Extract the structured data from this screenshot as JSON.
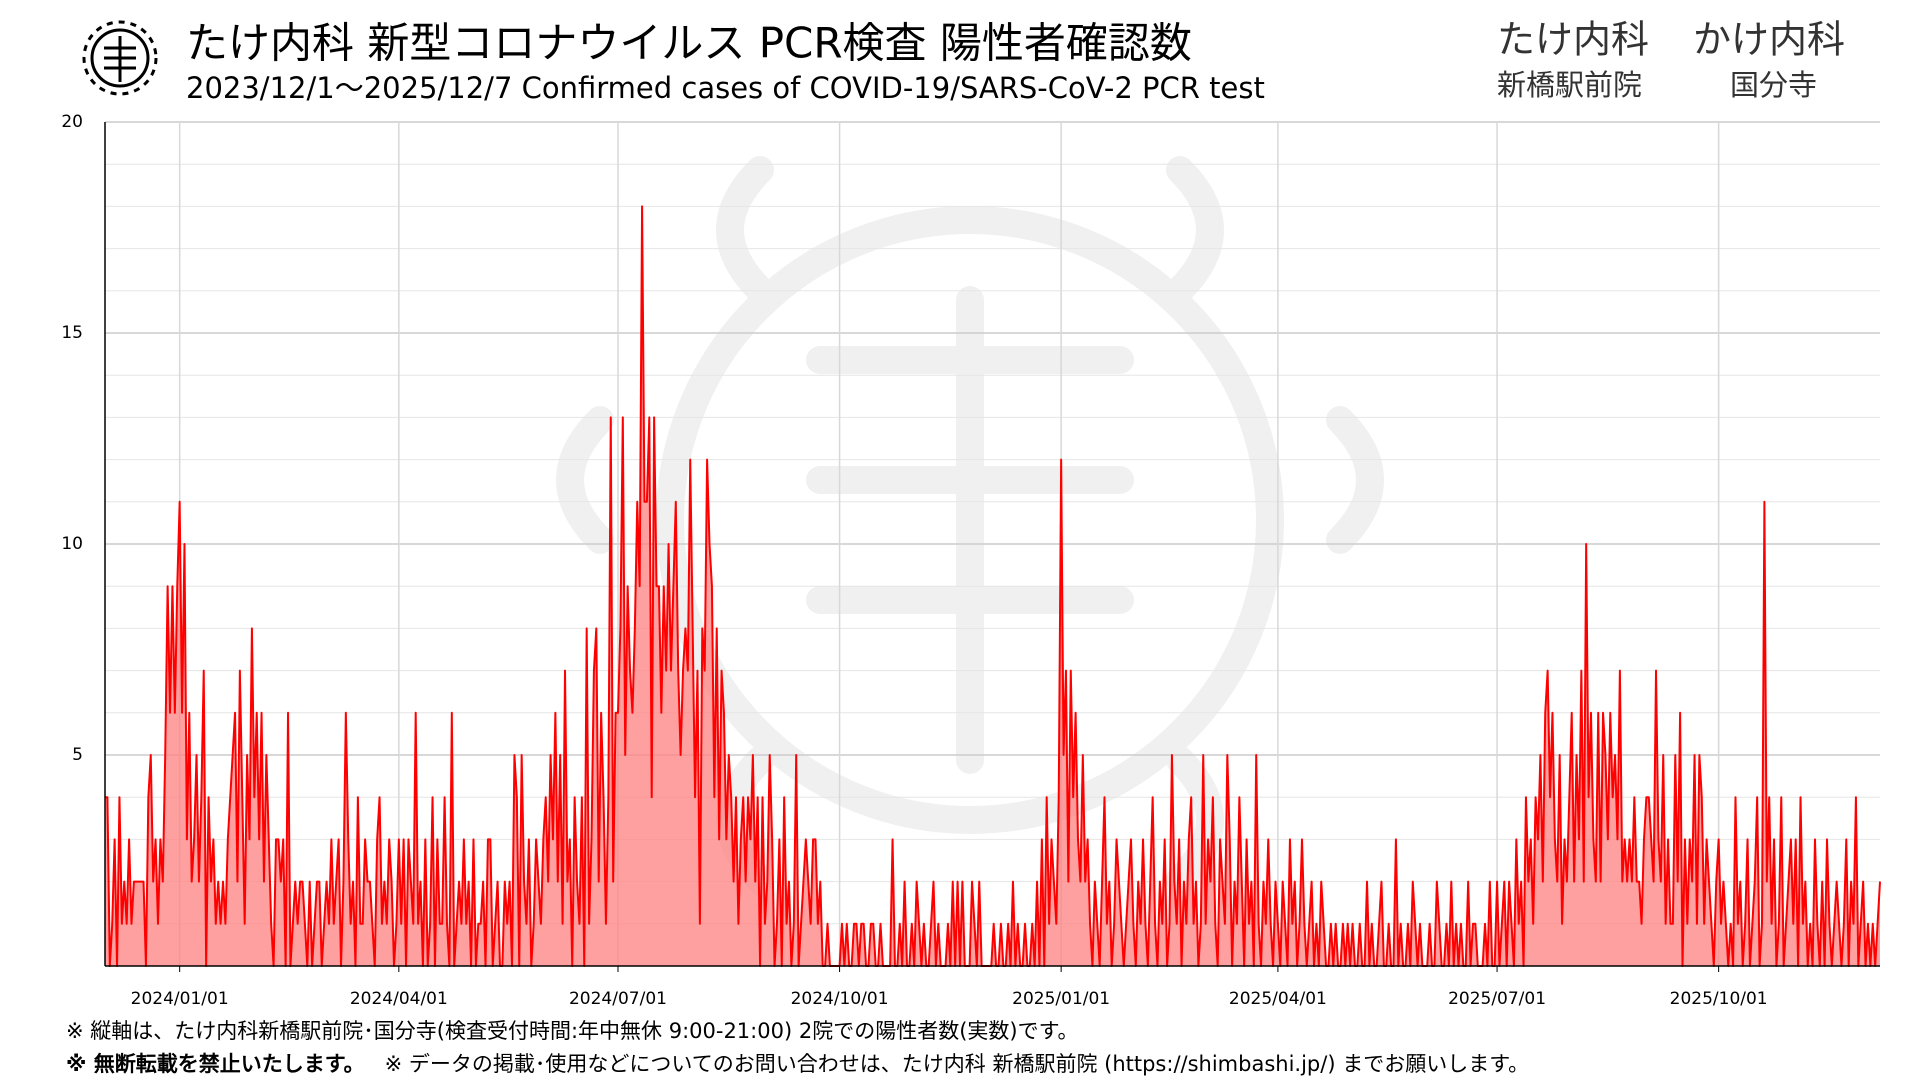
{
  "header": {
    "title": "たけ内科 新型コロナウイルス PCR検査 陽性者確認数",
    "subtitle": "2023/12/1〜2025/12/7  Confirmed cases of COVID-19/SARS-CoV-2 PCR test",
    "clinics": [
      {
        "name": "たけ内科",
        "branch": "新橋駅前院"
      },
      {
        "name": "かけ内科",
        "branch": "国分寺"
      }
    ]
  },
  "footnotes": [
    "※ 縦軸は、たけ内科新橋駅前院･国分寺(検査受付時間:年中無休 9:00-21:00) 2院での陽性者数(実数)です。",
    {
      "bold": "※ 無断転載を禁止いたします。",
      "text": "※ データの掲載･使用などについてのお問い合わせは、たけ内科 新橋駅前院 (https://shimbashi.jp/)  までお願いします。"
    }
  ],
  "chart_data": {
    "type": "area",
    "color": "#ff0000",
    "fill": "#ff8080",
    "grid": true,
    "minor_grid_step": 1,
    "xlim": [
      0,
      737
    ],
    "xticks": [
      {
        "value": 31,
        "label": "2024/01/01"
      },
      {
        "value": 122,
        "label": "2024/04/01"
      },
      {
        "value": 213,
        "label": "2024/07/01"
      },
      {
        "value": 305,
        "label": "2024/10/01"
      },
      {
        "value": 397,
        "label": "2025/01/01"
      },
      {
        "value": 487,
        "label": "2025/04/01"
      },
      {
        "value": 578,
        "label": "2025/07/01"
      },
      {
        "value": 670,
        "label": "2025/10/01"
      }
    ],
    "ylim": [
      0,
      20
    ],
    "yticks": [
      5,
      10,
      15,
      20
    ],
    "values": [
      4,
      4,
      0,
      1,
      3,
      0,
      4,
      1,
      2,
      1,
      3,
      1,
      2,
      2,
      2,
      2,
      2,
      0,
      4,
      5,
      2,
      3,
      1,
      3,
      2,
      5,
      9,
      6,
      9,
      6,
      9,
      11,
      6,
      10,
      3,
      6,
      2,
      3,
      5,
      2,
      4,
      7,
      0,
      4,
      2,
      3,
      1,
      2,
      1,
      2,
      1,
      3,
      4,
      5,
      6,
      2,
      7,
      4,
      1,
      5,
      3,
      8,
      4,
      6,
      3,
      6,
      2,
      5,
      3,
      1,
      0,
      3,
      3,
      2,
      3,
      0,
      6,
      0,
      1,
      2,
      1,
      2,
      2,
      1,
      0,
      2,
      0,
      1,
      2,
      2,
      0,
      1,
      2,
      1,
      3,
      1,
      2,
      3,
      0,
      2,
      6,
      3,
      1,
      2,
      0,
      4,
      1,
      1,
      3,
      2,
      2,
      1,
      0,
      3,
      4,
      1,
      2,
      1,
      3,
      2,
      0,
      1,
      3,
      1,
      3,
      0,
      3,
      2,
      1,
      6,
      1,
      2,
      0,
      3,
      0,
      1,
      4,
      0,
      3,
      1,
      1,
      4,
      1,
      0,
      6,
      0,
      1,
      2,
      1,
      3,
      1,
      2,
      0,
      3,
      0,
      1,
      1,
      2,
      0,
      3,
      3,
      0,
      1,
      2,
      0,
      0,
      2,
      1,
      2,
      0,
      5,
      4,
      0,
      5,
      2,
      1,
      3,
      0,
      1,
      3,
      2,
      1,
      3,
      4,
      2,
      5,
      3,
      6,
      2,
      5,
      1,
      7,
      2,
      3,
      0,
      4,
      2,
      1,
      4,
      0,
      8,
      1,
      3,
      7,
      8,
      2,
      6,
      4,
      1,
      4,
      13,
      2,
      6,
      6,
      8,
      13,
      5,
      9,
      7,
      6,
      8,
      11,
      9,
      18,
      11,
      11,
      13,
      4,
      13,
      9,
      9,
      6,
      9,
      7,
      10,
      7,
      9,
      11,
      7,
      5,
      7,
      8,
      7,
      12,
      8,
      4,
      7,
      1,
      8,
      7,
      12,
      10,
      9,
      4,
      8,
      3,
      7,
      6,
      3,
      5,
      4,
      2,
      4,
      1,
      3,
      4,
      2,
      4,
      3,
      5,
      2,
      4,
      0,
      4,
      1,
      2,
      5,
      3,
      0,
      1,
      3,
      0,
      4,
      1,
      2,
      0,
      1,
      5,
      0,
      1,
      2,
      3,
      2,
      1,
      3,
      3,
      1,
      2,
      0,
      0,
      1,
      0,
      0,
      0,
      0,
      0,
      1,
      0,
      1,
      0,
      0,
      1,
      1,
      0,
      1,
      1,
      0,
      0,
      1,
      1,
      0,
      0,
      1,
      0,
      0,
      0,
      0,
      3,
      0,
      0,
      1,
      0,
      2,
      0,
      0,
      1,
      0,
      2,
      1,
      0,
      1,
      0,
      0,
      1,
      2,
      0,
      1,
      0,
      0,
      0,
      1,
      0,
      2,
      0,
      2,
      0,
      2,
      0,
      0,
      0,
      2,
      1,
      0,
      2,
      0,
      0,
      0,
      0,
      0,
      1,
      0,
      0,
      1,
      0,
      0,
      1,
      0,
      2,
      0,
      1,
      0,
      0,
      1,
      0,
      0,
      1,
      0,
      2,
      0,
      3,
      0,
      4,
      1,
      3,
      2,
      1,
      4,
      12,
      5,
      7,
      2,
      7,
      4,
      6,
      3,
      2,
      5,
      2,
      3,
      1,
      0,
      2,
      1,
      0,
      2,
      4,
      1,
      2,
      0,
      1,
      3,
      2,
      1,
      0,
      1,
      2,
      3,
      1,
      0,
      2,
      1,
      3,
      1,
      0,
      2,
      4,
      1,
      0,
      2,
      1,
      3,
      0,
      1,
      5,
      2,
      1,
      3,
      0,
      2,
      1,
      3,
      4,
      1,
      2,
      0,
      1,
      5,
      1,
      3,
      2,
      4,
      1,
      0,
      3,
      2,
      1,
      5,
      3,
      0,
      2,
      1,
      4,
      2,
      0,
      3,
      1,
      2,
      0,
      5,
      1,
      0,
      2,
      1,
      3,
      1,
      0,
      2,
      1,
      0,
      2,
      1,
      0,
      3,
      1,
      2,
      0,
      1,
      3,
      1,
      0,
      1,
      2,
      0,
      1,
      0,
      2,
      1,
      0,
      0,
      1,
      0,
      1,
      0,
      0,
      1,
      0,
      1,
      0,
      1,
      0,
      0,
      1,
      0,
      0,
      2,
      0,
      1,
      0,
      0,
      1,
      2,
      0,
      0,
      1,
      0,
      0,
      3,
      0,
      1,
      0,
      0,
      1,
      0,
      2,
      1,
      0,
      1,
      0,
      0,
      0,
      1,
      0,
      0,
      2,
      1,
      0,
      0,
      1,
      0,
      2,
      0,
      1,
      0,
      1,
      0,
      0,
      2,
      0,
      1,
      1,
      0,
      0,
      0,
      1,
      0,
      2,
      0,
      0,
      2,
      0,
      1,
      2,
      0,
      2,
      1,
      0,
      3,
      1,
      2,
      0,
      4,
      2,
      3,
      1,
      4,
      3,
      5,
      2,
      6,
      7,
      4,
      6,
      3,
      2,
      5,
      1,
      3,
      2,
      4,
      6,
      2,
      5,
      3,
      7,
      2,
      10,
      4,
      6,
      3,
      2,
      6,
      2,
      6,
      5,
      3,
      6,
      4,
      5,
      3,
      7,
      2,
      3,
      2,
      3,
      2,
      4,
      2,
      2,
      1,
      3,
      4,
      4,
      3,
      2,
      7,
      3,
      2,
      5,
      1,
      3,
      1,
      1,
      5,
      2,
      6,
      0,
      3,
      1,
      3,
      2,
      5,
      1,
      5,
      4,
      1,
      3,
      2,
      1,
      0,
      2,
      3,
      1,
      2,
      1,
      0,
      1,
      0,
      4,
      1,
      2,
      0,
      1,
      3,
      0,
      1,
      2,
      4,
      0,
      1,
      11,
      2,
      4,
      1,
      3,
      0,
      1,
      4,
      0,
      1,
      2,
      3,
      1,
      3,
      0,
      4,
      1,
      2,
      0,
      1,
      0,
      3,
      1,
      0,
      2,
      0,
      3,
      1,
      0,
      1,
      2,
      1,
      0,
      1,
      3,
      0,
      2,
      1,
      4,
      0,
      1,
      2,
      0,
      1,
      0,
      1,
      0,
      1,
      2
    ]
  }
}
